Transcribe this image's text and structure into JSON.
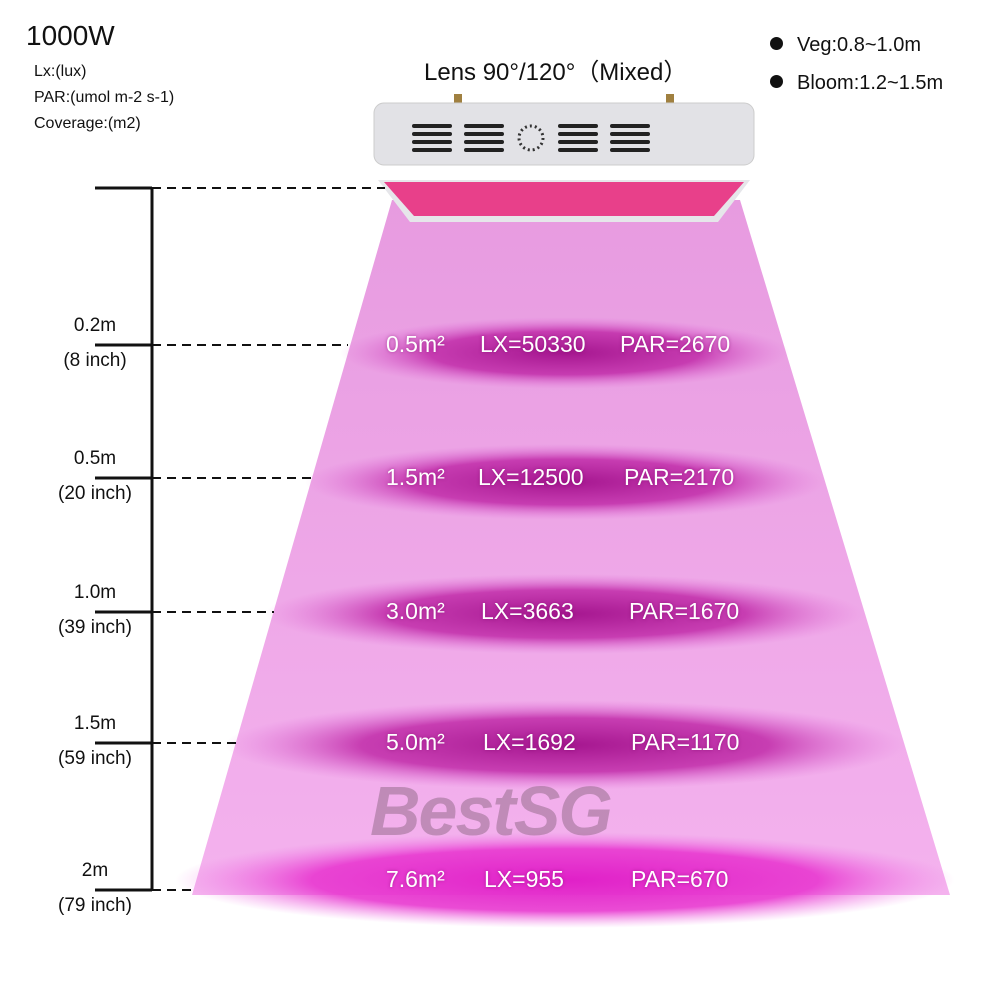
{
  "header": {
    "title": "1000W",
    "units": [
      "Lx:(lux)",
      "PAR:(umol m-2  s-1)",
      "Coverage:(m2)"
    ],
    "lens": "Lens 90°/120°（Mixed）"
  },
  "notes": [
    "Veg:0.8~1.0m",
    "Bloom:1.2~1.5m"
  ],
  "levels": [
    {
      "height": "0.2m",
      "inch": "(8 inch)",
      "coverage": "0.5m²",
      "lx": "LX=50330",
      "par": "PAR=2670"
    },
    {
      "height": "0.5m",
      "inch": "(20 inch)",
      "coverage": "1.5m²",
      "lx": "LX=12500",
      "par": "PAR=2170"
    },
    {
      "height": "1.0m",
      "inch": "(39 inch)",
      "coverage": "3.0m²",
      "lx": "LX=3663",
      "par": "PAR=1670"
    },
    {
      "height": "1.5m",
      "inch": "(59 inch)",
      "coverage": "5.0m²",
      "lx": "LX=1692",
      "par": "PAR=1170"
    },
    {
      "height": "2m",
      "inch": "(79 inch)",
      "coverage": "7.6m²",
      "lx": "LX=955",
      "par": "PAR=670"
    }
  ],
  "watermark": "BestSG",
  "colors": {
    "beam": "#e890e0",
    "glow": "#b0189a"
  }
}
